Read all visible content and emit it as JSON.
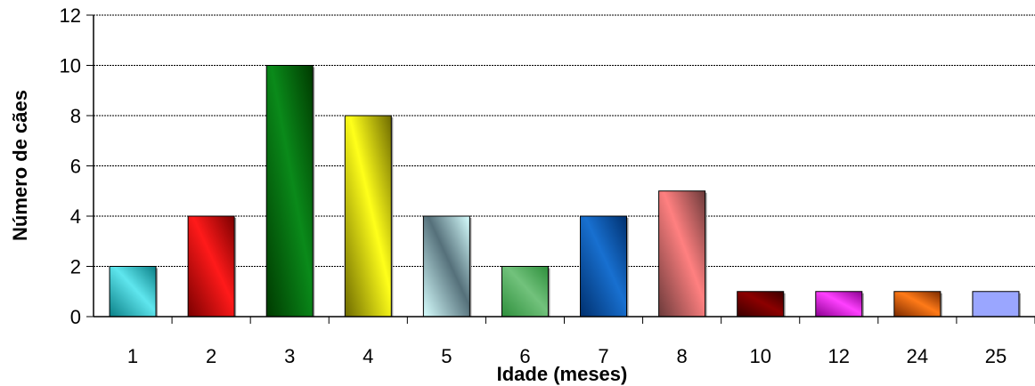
{
  "chart_data": {
    "type": "bar",
    "title": "",
    "xlabel": "Idade (meses)",
    "ylabel": "Número de cães",
    "categories": [
      "1",
      "2",
      "3",
      "4",
      "5",
      "6",
      "7",
      "8",
      "10",
      "12",
      "24",
      "25"
    ],
    "values": [
      2,
      4,
      10,
      8,
      4,
      2,
      4,
      5,
      1,
      1,
      1,
      1
    ],
    "ylim": [
      0,
      12
    ],
    "yticks": [
      0,
      2,
      4,
      6,
      8,
      10,
      12
    ],
    "grid": "horizontal dashed",
    "legend": "none",
    "bar_colors": [
      [
        "#0a7f86",
        "#5fe6ee"
      ],
      [
        "#7a0000",
        "#ff1a1a"
      ],
      [
        "#003a00",
        "#0a8a1a"
      ],
      [
        "#6e6a00",
        "#ffff1a"
      ],
      [
        "#d7ffff",
        "#55707a"
      ],
      [
        "#2e8f3c",
        "#72c27c"
      ],
      [
        "#00306e",
        "#1870d0"
      ],
      [
        "#6a3a3a",
        "#ff8080"
      ],
      [
        "#3a0000",
        "#8c0000"
      ],
      [
        "#8a0090",
        "#ff40ff"
      ],
      [
        "#7a2a00",
        "#ff7a18"
      ],
      [
        "#9aa6ff",
        "#9aa6ff"
      ]
    ]
  }
}
